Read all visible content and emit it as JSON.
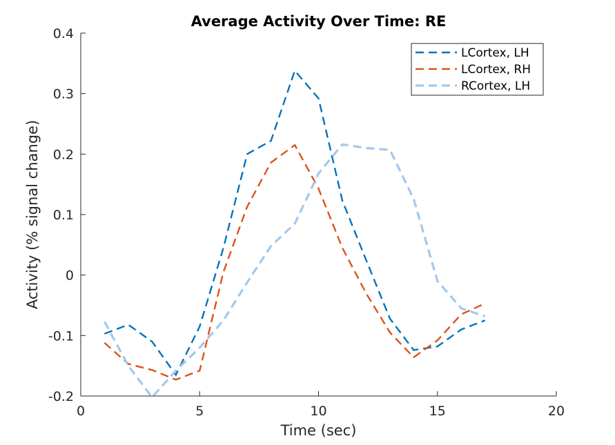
{
  "chart_data": {
    "type": "line",
    "title": "Average Activity Over Time: RE",
    "xlabel": "Time (sec)",
    "ylabel": "Activity (% signal change)",
    "xlim": [
      0,
      20
    ],
    "ylim": [
      -0.2,
      0.4
    ],
    "xticks": [
      0,
      5,
      10,
      15,
      20
    ],
    "xtick_labels": [
      "0",
      "5",
      "10",
      "15",
      "20"
    ],
    "yticks": [
      -0.2,
      -0.1,
      0,
      0.1,
      0.2,
      0.3,
      0.4
    ],
    "ytick_labels": [
      "-0.2",
      "-0.1",
      "0",
      "0.1",
      "0.2",
      "0.3",
      "0.4"
    ],
    "grid": false,
    "legend_position": "top-right",
    "line_style": "dashed",
    "x": [
      1,
      2,
      3,
      4,
      5,
      6,
      7,
      8,
      9,
      10,
      11,
      12,
      13,
      14,
      15,
      16,
      17
    ],
    "series": [
      {
        "name": "LCortex, LH",
        "color": "#0072BD",
        "values": [
          -0.097,
          -0.082,
          -0.11,
          -0.165,
          -0.085,
          0.045,
          0.2,
          0.222,
          0.338,
          0.292,
          0.123,
          0.025,
          -0.072,
          -0.124,
          -0.118,
          -0.09,
          -0.075
        ]
      },
      {
        "name": "LCortex, RH",
        "color": "#D95319",
        "values": [
          -0.112,
          -0.147,
          -0.157,
          -0.173,
          -0.158,
          0.005,
          0.113,
          0.186,
          0.215,
          0.143,
          0.045,
          -0.03,
          -0.095,
          -0.136,
          -0.108,
          -0.065,
          -0.047
        ]
      },
      {
        "name": "RCortex, LH",
        "color": "#A2C8EC",
        "values": [
          -0.077,
          -0.15,
          -0.202,
          -0.158,
          -0.12,
          -0.075,
          -0.012,
          0.048,
          0.085,
          0.168,
          0.216,
          0.21,
          0.207,
          0.126,
          -0.01,
          -0.055,
          -0.068
        ]
      }
    ]
  }
}
